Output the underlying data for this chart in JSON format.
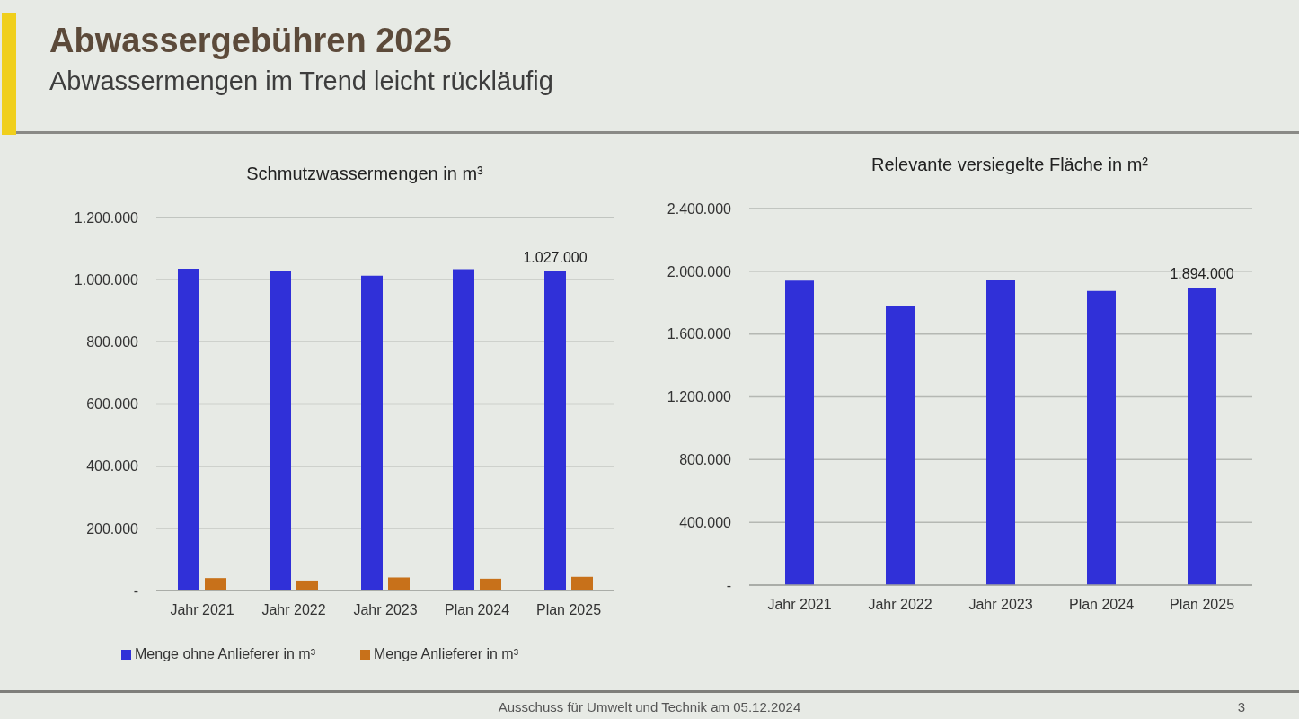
{
  "chart_data": [
    {
      "type": "other",
      "title": "Abwassergebühren 2025",
      "subtitle": "Abwassermengen im Trend leicht rückläufig"
    },
    {
      "type": "bar",
      "title": "Schmutzwassermengen in m³",
      "categories": [
        "Jahr 2021",
        "Jahr 2022",
        "Jahr 2023",
        "Plan 2024",
        "Plan 2025"
      ],
      "series": [
        {
          "name": "Menge ohne Anlieferer in m³",
          "color": "#3030d8",
          "values": [
            1035000,
            1027000,
            1013000,
            1034000,
            1027000
          ],
          "value_labels": [
            null,
            null,
            null,
            null,
            "1.027.000"
          ]
        },
        {
          "name": "Menge Anlieferer in m³",
          "color": "#c8711a",
          "values": [
            40000,
            32000,
            42000,
            38000,
            44000
          ]
        }
      ],
      "ylim": [
        0,
        1200000
      ],
      "yticks": [
        {
          "value": 0,
          "label": "-"
        },
        {
          "value": 200000,
          "label": "200.000"
        },
        {
          "value": 400000,
          "label": "400.000"
        },
        {
          "value": 600000,
          "label": "600.000"
        },
        {
          "value": 800000,
          "label": "800.000"
        },
        {
          "value": 1000000,
          "label": "1.000.000"
        },
        {
          "value": 1200000,
          "label": "1.200.000"
        }
      ],
      "grid": "y",
      "legend": "bottom"
    },
    {
      "type": "bar",
      "title": "Relevante versiegelte Fläche in m²",
      "categories": [
        "Jahr 2021",
        "Jahr 2022",
        "Jahr 2023",
        "Plan 2024",
        "Plan 2025"
      ],
      "values": [
        1940000,
        1780000,
        1945000,
        1875000,
        1894000
      ],
      "color": "#3030d8",
      "value_labels": [
        null,
        null,
        null,
        null,
        "1.894.000"
      ],
      "ylim": [
        0,
        2400000
      ],
      "yticks": [
        {
          "value": 0,
          "label": "-"
        },
        {
          "value": 400000,
          "label": "400.000"
        },
        {
          "value": 800000,
          "label": "800.000"
        },
        {
          "value": 1200000,
          "label": "1.200.000"
        },
        {
          "value": 1600000,
          "label": "1.600.000"
        },
        {
          "value": 2000000,
          "label": "2.000.000"
        },
        {
          "value": 2400000,
          "label": "2.400.000"
        }
      ],
      "grid": "y"
    },
    {
      "type": "other",
      "annotations": [
        "Ausschuss für Umwelt und Technik am 05.12.2024",
        "3"
      ]
    }
  ]
}
